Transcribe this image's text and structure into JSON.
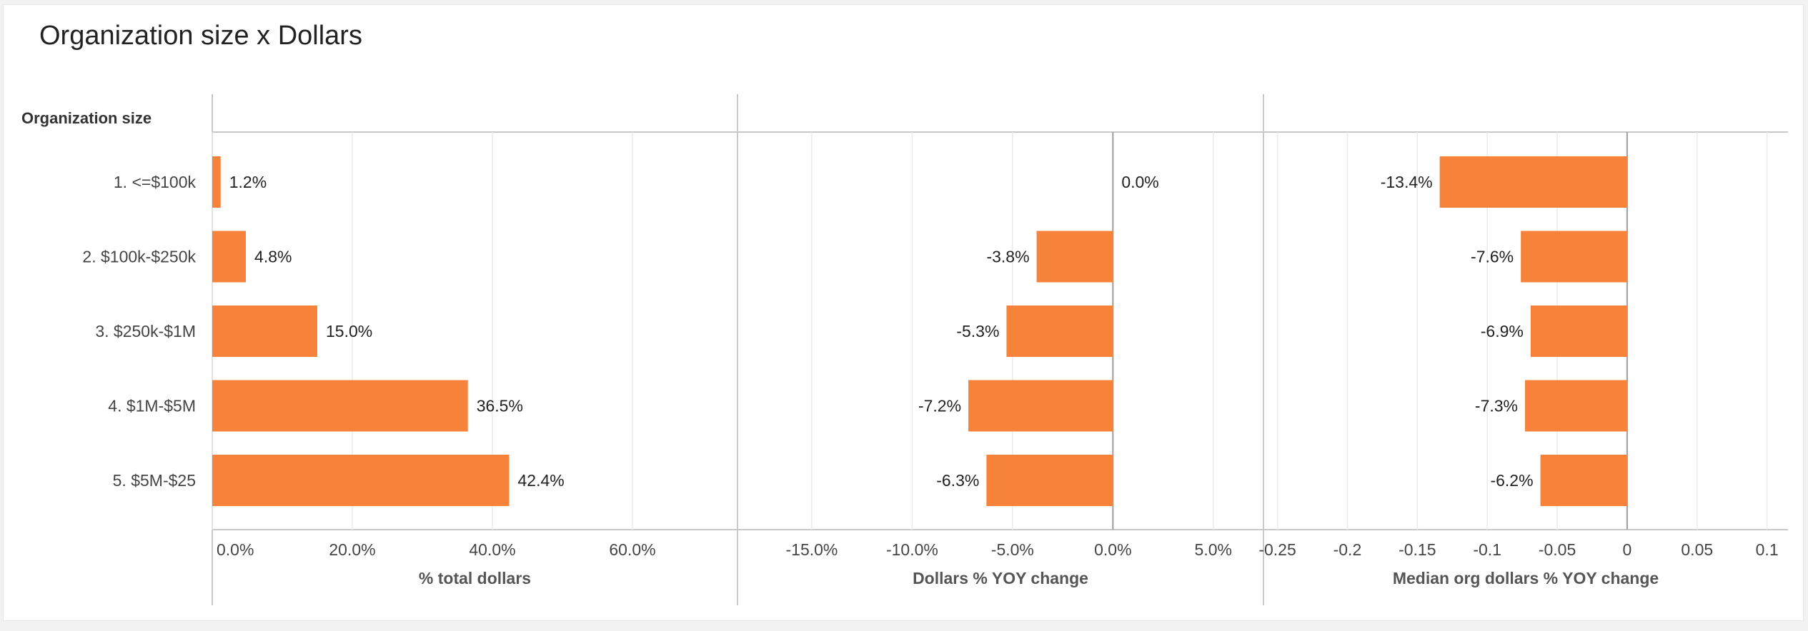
{
  "title": "Organization size x Dollars",
  "colors": {
    "bar": "#f7833b",
    "grid": "#ebebeb",
    "axis": "#c8c8c8",
    "zero": "#9e9e9e",
    "text": "#222222",
    "muted": "#555555"
  },
  "chart_data": {
    "type": "bar",
    "orientation": "horizontal",
    "row_header": "Organization size",
    "categories": [
      "1. <=$100k",
      "2. $100k-$250k",
      "3. $250k-$1M",
      "4. $1M-$5M",
      "5. $5M-$25"
    ],
    "panels": [
      {
        "xlabel": "% total dollars",
        "xlim": [
          0,
          75
        ],
        "ticks": [
          0,
          20,
          40,
          60
        ],
        "tick_labels": [
          "0.0%",
          "20.0%",
          "40.0%",
          "60.0%"
        ],
        "values": [
          1.2,
          4.8,
          15.0,
          36.5,
          42.4
        ],
        "value_labels": [
          "1.2%",
          "4.8%",
          "15.0%",
          "36.5%",
          "42.4%"
        ],
        "zero_line": false
      },
      {
        "xlabel": "Dollars % YOY change",
        "xlim": [
          -18.7,
          7.5
        ],
        "ticks": [
          -15,
          -10,
          -5,
          0,
          5
        ],
        "tick_labels": [
          "-15.0%",
          "-10.0%",
          "-5.0%",
          "0.0%",
          "5.0%"
        ],
        "values": [
          0.0,
          -3.8,
          -5.3,
          -7.2,
          -6.3
        ],
        "value_labels": [
          "0.0%",
          "-3.8%",
          "-5.3%",
          "-7.2%",
          "-6.3%"
        ],
        "zero_line": true
      },
      {
        "xlabel": "Median org dollars % YOY change",
        "xlim": [
          -0.26,
          0.115
        ],
        "ticks": [
          -0.25,
          -0.2,
          -0.15,
          -0.1,
          -0.05,
          0,
          0.05,
          0.1
        ],
        "tick_labels": [
          "-0.25",
          "-0.2",
          "-0.15",
          "-0.1",
          "-0.05",
          "0",
          "0.05",
          "0.1"
        ],
        "values": [
          -0.134,
          -0.076,
          -0.069,
          -0.073,
          -0.062
        ],
        "value_labels": [
          "-13.4%",
          "-7.6%",
          "-6.9%",
          "-7.3%",
          "-6.2%"
        ],
        "zero_line": true
      }
    ]
  }
}
